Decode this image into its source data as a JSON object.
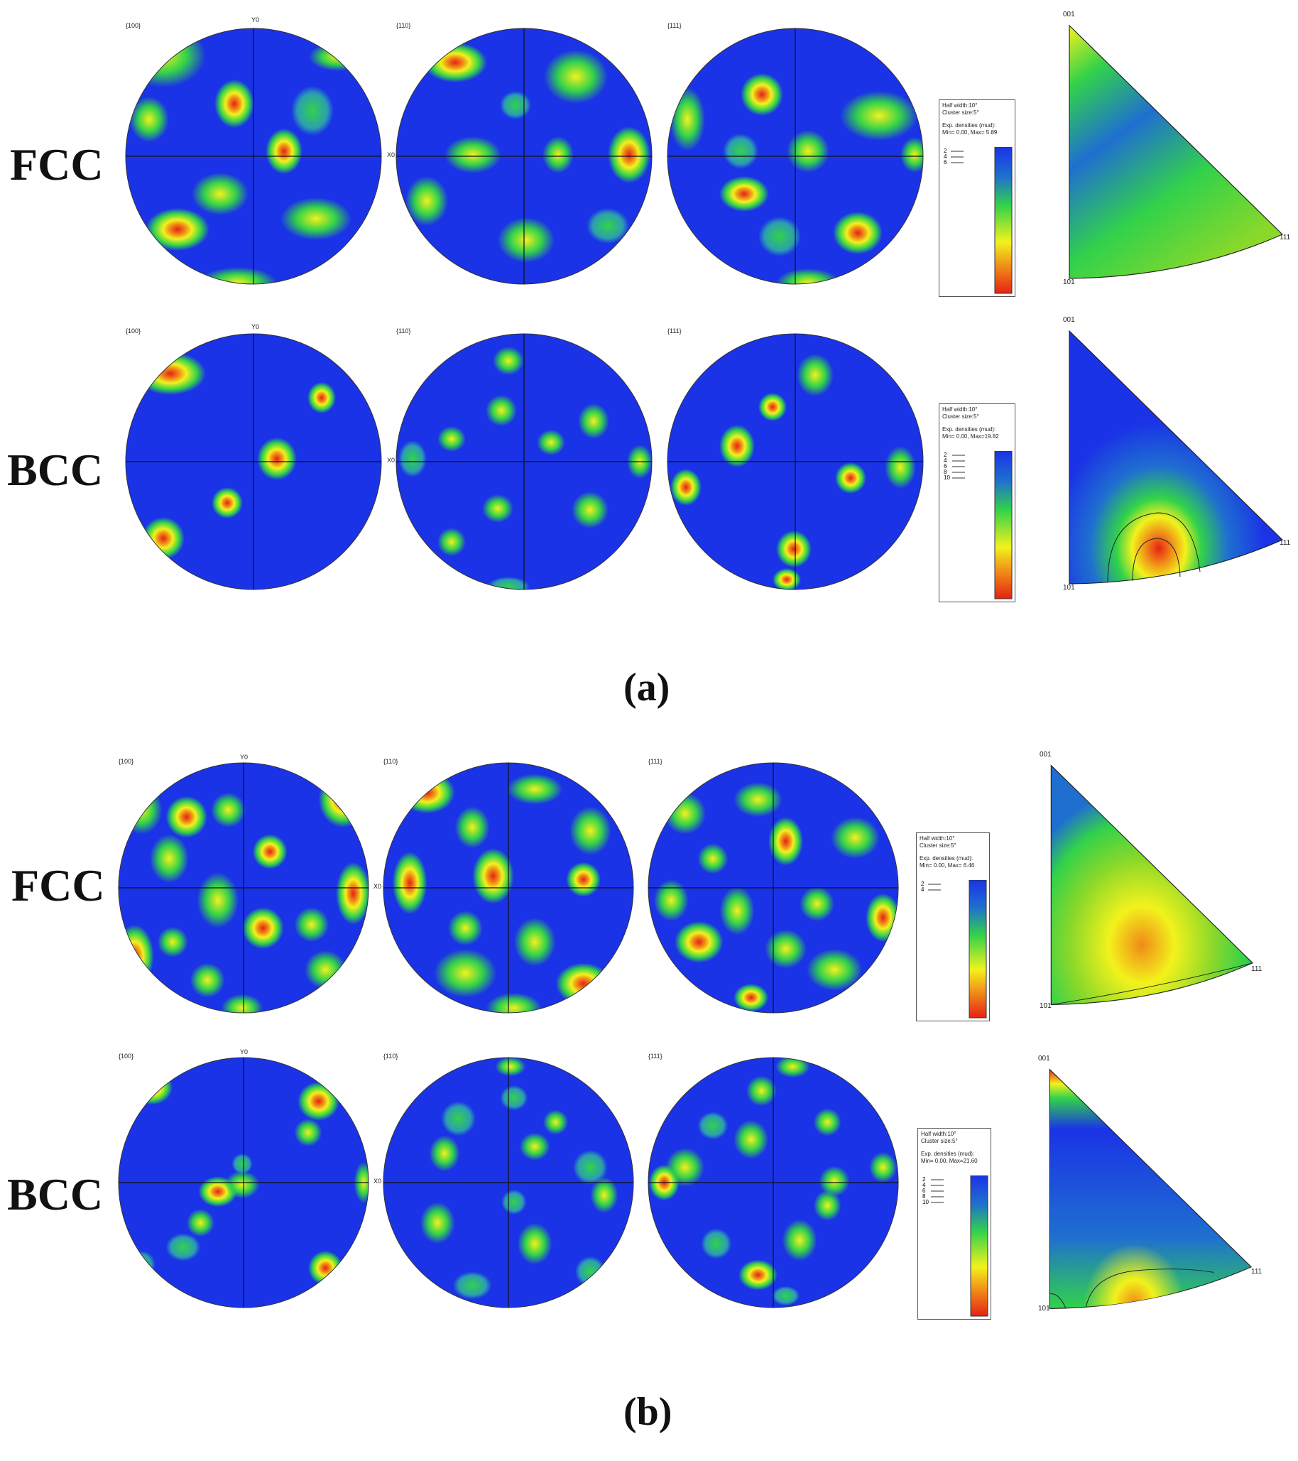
{
  "rows": [
    {
      "phase": "FCC",
      "figures": {
        "pf1": "{100}",
        "pf2": "{110}",
        "pf3": "{111}"
      },
      "axes": {
        "y": "Y0",
        "x": "X0"
      },
      "legend": {
        "l1": "Half width:10°",
        "l2": "Cluster size:5°",
        "l3": "Exp. densities (mud):",
        "l4": "Min= 0.00, Max= 5.89",
        "contours": [
          "2",
          "4",
          "6"
        ],
        "scale": [
          "1",
          "2",
          "3",
          "4",
          "5",
          "6",
          "7"
        ]
      },
      "ipf": {
        "a": "001",
        "b": "101",
        "c": "111"
      }
    },
    {
      "phase": "BCC",
      "figures": {
        "pf1": "{100}",
        "pf2": "{110}",
        "pf3": "{111}"
      },
      "axes": {
        "y": "Y0",
        "x": "X0"
      },
      "legend": {
        "l1": "Half width:10°",
        "l2": "Cluster size:5°",
        "l3": "Exp. densities (mud):",
        "l4": "Min= 0.00, Max=19.82",
        "contours": [
          "2",
          "4",
          "6",
          "8",
          "10"
        ],
        "scale": [
          "1",
          "2",
          "3",
          "4",
          "5",
          "6",
          "7",
          "8",
          "9",
          "10",
          "11",
          "12",
          "13",
          "14",
          "15",
          "16",
          "17",
          "18",
          "19"
        ]
      },
      "ipf": {
        "a": "001",
        "b": "101",
        "c": "111"
      }
    },
    {
      "phase": "FCC",
      "figures": {
        "pf1": "{100}",
        "pf2": "{110}",
        "pf3": "{111}"
      },
      "axes": {
        "y": "Y0",
        "x": "X0"
      },
      "legend": {
        "l1": "Half width:10°",
        "l2": "Cluster size:5°",
        "l3": "Exp. densities (mud):",
        "l4": "Min= 0.00, Max= 6.46",
        "contours": [
          "2",
          "4"
        ],
        "scale": [
          "1",
          "2",
          "3",
          "4",
          "5"
        ]
      },
      "ipf": {
        "a": "001",
        "b": "101",
        "c": "111"
      }
    },
    {
      "phase": "BCC",
      "figures": {
        "pf1": "{100}",
        "pf2": "{110}",
        "pf3": "{111}"
      },
      "axes": {
        "y": "Y0",
        "x": "X0"
      },
      "legend": {
        "l1": "Half width:10°",
        "l2": "Cluster size:5°",
        "l3": "Exp. densities (mud):",
        "l4": "Min= 0.00, Max=21.60",
        "contours": [
          "2",
          "4",
          "6",
          "8",
          "10"
        ],
        "scale": [
          "1",
          "2",
          "3",
          "4",
          "5",
          "6",
          "7",
          "8",
          "9",
          "10",
          "11",
          "12",
          "13",
          "14",
          "15",
          "16",
          "17",
          "18",
          "19",
          "20",
          "21"
        ]
      },
      "ipf": {
        "a": "001",
        "b": "101",
        "c": "111"
      }
    }
  ],
  "captions": {
    "a": "(a)",
    "b": "(b)"
  },
  "colors": {
    "background": "#1a33e6",
    "low": "#2e7fd0",
    "mid": "#32d24a",
    "high": "#f2f21c",
    "peak": "#e62214"
  }
}
